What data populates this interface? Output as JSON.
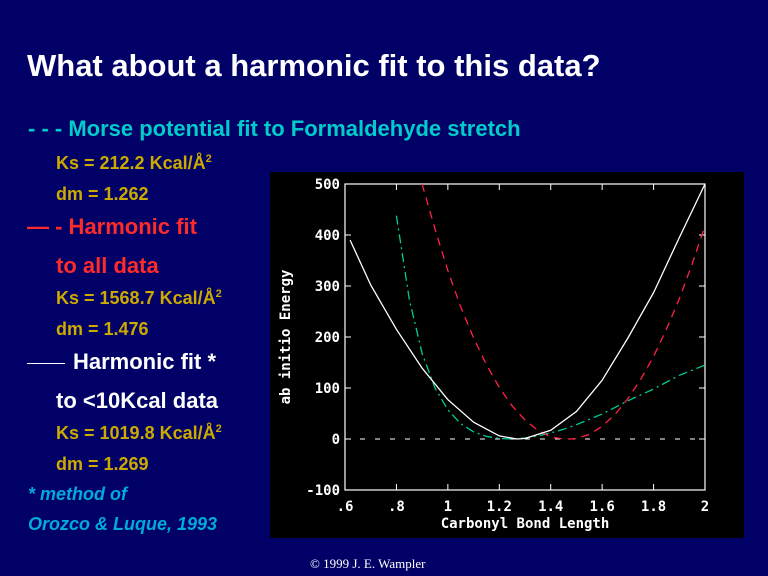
{
  "slide": {
    "title": "What about a harmonic fit to this data?",
    "morse_label": "- - - Morse potential fit to Formaldehyde stretch",
    "morse_ks": "Ks = 212.2 Kcal/Å",
    "morse_ks_exp": "2",
    "morse_dm": "dm = 1.262",
    "harm_all_line1": "— - Harmonic fit",
    "harm_all_line2": "to all data",
    "harm_all_ks": "Ks = 1568.7 Kcal/Å",
    "harm_all_ks_exp": "2",
    "harm_all_dm": "dm = 1.476",
    "harm_10_line1": "Harmonic fit *",
    "harm_10_line2": "to <10Kcal data",
    "harm_10_ks": "Ks = 1019.8 Kcal/Å",
    "harm_10_ks_exp": "2",
    "harm_10_dm": "dm = 1.269",
    "footnote_line1": "* method of",
    "footnote_line2": "Orozco & Luque, 1993",
    "copyright": "© 1999 J. E. Wampler"
  },
  "colors": {
    "background": "#000066",
    "morse": "#00cc99",
    "harmonic_all": "#ff2244",
    "harmonic_10": "#ffffff",
    "label_yellow": "#ccaa00"
  },
  "chart_data": {
    "type": "line",
    "xlabel": "Carbonyl Bond Length",
    "ylabel": "ab initio Energy",
    "xlim": [
      0.6,
      2.0
    ],
    "ylim": [
      -100,
      500
    ],
    "xticks": [
      0.6,
      0.8,
      1.0,
      1.2,
      1.4,
      1.6,
      1.8,
      2.0
    ],
    "xtick_labels": [
      ".6",
      ".8",
      "1",
      "1.2",
      "1.4",
      "1.6",
      "1.8",
      "2"
    ],
    "yticks": [
      -100,
      0,
      100,
      200,
      300,
      400,
      500
    ],
    "ytick_labels": [
      "-100",
      "0",
      "100",
      "200",
      "300",
      "400",
      "500"
    ],
    "zero_line": "dashed",
    "series": [
      {
        "name": "Morse potential fit to Formaldehyde stretch",
        "style": "dash-dot",
        "color": "#00cc99",
        "x": [
          0.8,
          0.85,
          0.9,
          0.95,
          1.0,
          1.05,
          1.1,
          1.15,
          1.2,
          1.25,
          1.3,
          1.35,
          1.4,
          1.45,
          1.5,
          1.6,
          1.7,
          1.8,
          1.9,
          2.0
        ],
        "y": [
          438,
          274,
          168,
          100,
          57,
          30,
          14,
          5,
          1,
          0,
          2,
          6,
          12,
          19,
          28,
          49,
          75,
          98,
          125,
          145
        ]
      },
      {
        "name": "Harmonic fit to all data",
        "style": "dashed",
        "color": "#ff2244",
        "x": [
          0.9,
          0.95,
          1.0,
          1.05,
          1.1,
          1.15,
          1.2,
          1.25,
          1.3,
          1.35,
          1.4,
          1.45,
          1.476,
          1.5,
          1.55,
          1.6,
          1.65,
          1.7,
          1.75,
          1.8,
          1.85,
          1.9,
          1.95,
          2.0
        ],
        "y": [
          505,
          412,
          330,
          259,
          198,
          146,
          101,
          65,
          37,
          17,
          4,
          0,
          0,
          1,
          9,
          25,
          48,
          79,
          117,
          162,
          215,
          275,
          343,
          418
        ]
      },
      {
        "name": "Harmonic fit to <10Kcal data",
        "style": "solid",
        "color": "#ffffff",
        "x": [
          0.62,
          0.7,
          0.8,
          0.9,
          1.0,
          1.1,
          1.2,
          1.269,
          1.3,
          1.4,
          1.5,
          1.6,
          1.7,
          1.8,
          1.9,
          2.0
        ],
        "y": [
          390,
          302,
          215,
          139,
          77,
          33,
          6,
          0,
          1,
          17,
          54,
          115,
          198,
          287,
          395,
          500
        ]
      }
    ]
  }
}
